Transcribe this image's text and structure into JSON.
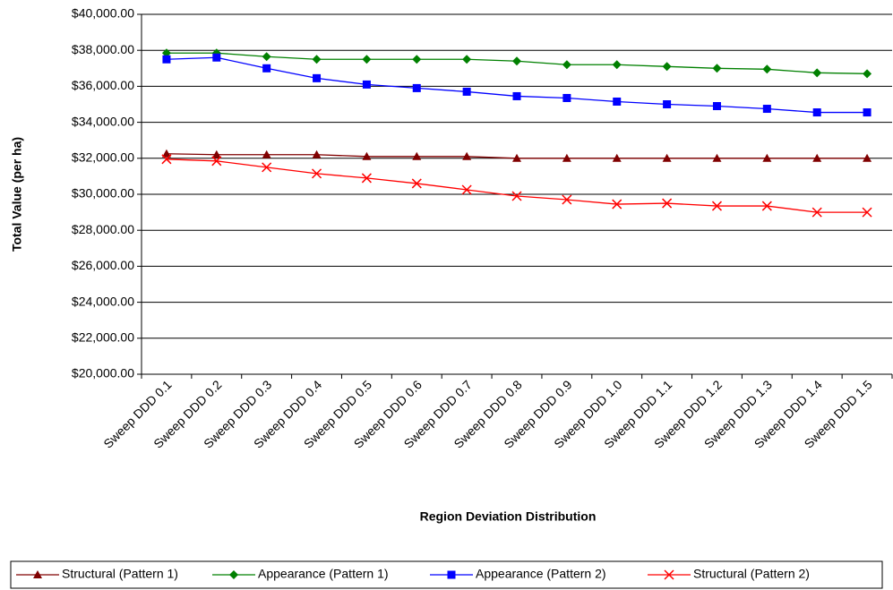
{
  "chart_data": {
    "type": "line",
    "xlabel": "Region Deviation Distribution",
    "ylabel": "Total Value (per ha)",
    "categories": [
      "Sweep DDD 0.1",
      "Sweep DDD 0.2",
      "Sweep DDD 0.3",
      "Sweep DDD 0.4",
      "Sweep DDD 0.5",
      "Sweep DDD 0.6",
      "Sweep DDD 0.7",
      "Sweep DDD 0.8",
      "Sweep DDD 0.9",
      "Sweep DDD 1.0",
      "Sweep DDD 1.1",
      "Sweep DDD 1.2",
      "Sweep DDD 1.3",
      "Sweep DDD 1.4",
      "Sweep DDD 1.5"
    ],
    "series": [
      {
        "name": "Structural (Pattern 1)",
        "color": "#800000",
        "marker": "triangle",
        "values": [
          32250,
          32200,
          32200,
          32200,
          32100,
          32100,
          32100,
          32000,
          32000,
          32000,
          32000,
          32000,
          32000,
          32000,
          32000
        ]
      },
      {
        "name": "Appearance (Pattern 1)",
        "color": "#008000",
        "marker": "diamond",
        "values": [
          37850,
          37850,
          37650,
          37500,
          37500,
          37500,
          37500,
          37400,
          37200,
          37200,
          37100,
          37000,
          36950,
          36750,
          36700
        ]
      },
      {
        "name": "Appearance (Pattern 2)",
        "color": "#0000ff",
        "marker": "square",
        "values": [
          37500,
          37600,
          37000,
          36450,
          36100,
          35900,
          35700,
          35450,
          35350,
          35150,
          35000,
          34900,
          34750,
          34550,
          34550
        ]
      },
      {
        "name": "Structural (Pattern 2)",
        "color": "#ff0000",
        "marker": "x",
        "values": [
          31950,
          31850,
          31500,
          31150,
          30900,
          30600,
          30250,
          29900,
          29700,
          29450,
          29500,
          29350,
          29350,
          29000,
          29000
        ]
      }
    ],
    "ylim": [
      20000,
      40000
    ],
    "yticks": [
      {
        "value": 20000,
        "label": "$20,000.00"
      },
      {
        "value": 22000,
        "label": "$22,000.00"
      },
      {
        "value": 24000,
        "label": "$24,000.00"
      },
      {
        "value": 26000,
        "label": "$26,000.00"
      },
      {
        "value": 28000,
        "label": "$28,000.00"
      },
      {
        "value": 30000,
        "label": "$30,000.00"
      },
      {
        "value": 32000,
        "label": "$32,000.00"
      },
      {
        "value": 34000,
        "label": "$34,000.00"
      },
      {
        "value": 36000,
        "label": "$36,000.00"
      },
      {
        "value": 38000,
        "label": "$38,000.00"
      },
      {
        "value": 40000,
        "label": "$40,000.00"
      }
    ],
    "grid": true,
    "legend": "bottom"
  }
}
